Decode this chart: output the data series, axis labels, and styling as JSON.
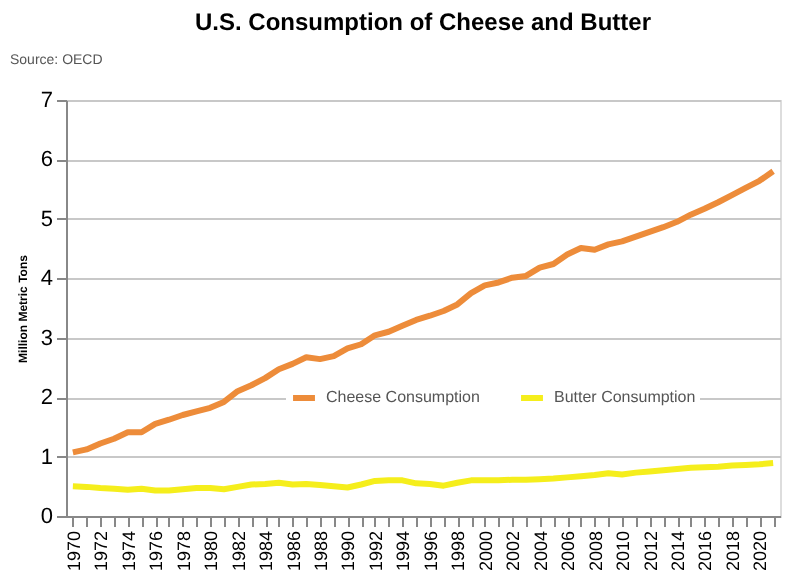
{
  "chart_data": {
    "type": "line",
    "title": "U.S. Consumption of Cheese and Butter",
    "ylabel": "Million Metric Tons",
    "annotations": [
      "Source: OECD"
    ],
    "categories": [
      "1970",
      null,
      "1972",
      null,
      "1974",
      null,
      "1976",
      null,
      "1978",
      null,
      "1980",
      null,
      "1982",
      null,
      "1984",
      null,
      "1986",
      null,
      "1988",
      null,
      "1990",
      null,
      "1992",
      null,
      "1994",
      null,
      "1996",
      null,
      "1998",
      null,
      "2000",
      null,
      "2002",
      null,
      "2004",
      null,
      "2006",
      null,
      "2008",
      null,
      "2010",
      null,
      "2012",
      null,
      "2014",
      null,
      "2016",
      null,
      "2018",
      null,
      "2020",
      null
    ],
    "series": [
      {
        "name": "Cheese Consumption",
        "color": "#ed8c3a",
        "values": [
          1.07,
          1.12,
          1.22,
          1.3,
          1.41,
          1.41,
          1.55,
          1.62,
          1.7,
          1.76,
          1.82,
          1.92,
          2.1,
          2.2,
          2.32,
          2.47,
          2.56,
          2.67,
          2.64,
          2.69,
          2.82,
          2.89,
          3.04,
          3.1,
          3.2,
          3.3,
          3.37,
          3.45,
          3.56,
          3.75,
          3.88,
          3.93,
          4.01,
          4.04,
          4.18,
          4.24,
          4.4,
          4.51,
          4.48,
          4.57,
          4.62,
          4.7,
          4.78,
          4.86,
          4.95,
          5.07,
          5.17,
          5.28,
          5.4,
          5.52,
          5.64,
          5.8
        ]
      },
      {
        "name": "Butter Consumption",
        "color": "#f5ee1c",
        "values": [
          0.5,
          0.49,
          0.47,
          0.46,
          0.44,
          0.46,
          0.43,
          0.43,
          0.45,
          0.47,
          0.47,
          0.45,
          0.49,
          0.53,
          0.54,
          0.56,
          0.53,
          0.54,
          0.52,
          0.5,
          0.48,
          0.53,
          0.59,
          0.6,
          0.6,
          0.55,
          0.54,
          0.51,
          0.56,
          0.6,
          0.6,
          0.6,
          0.61,
          0.61,
          0.62,
          0.63,
          0.65,
          0.67,
          0.69,
          0.72,
          0.7,
          0.73,
          0.75,
          0.77,
          0.79,
          0.81,
          0.82,
          0.83,
          0.85,
          0.86,
          0.87,
          0.89
        ]
      }
    ],
    "ylim": [
      0,
      7
    ],
    "yticks": [
      0,
      1,
      2,
      3,
      4,
      5,
      6,
      7
    ],
    "grid": "y",
    "legend": "center",
    "marker": "none",
    "line_style": "solid"
  }
}
